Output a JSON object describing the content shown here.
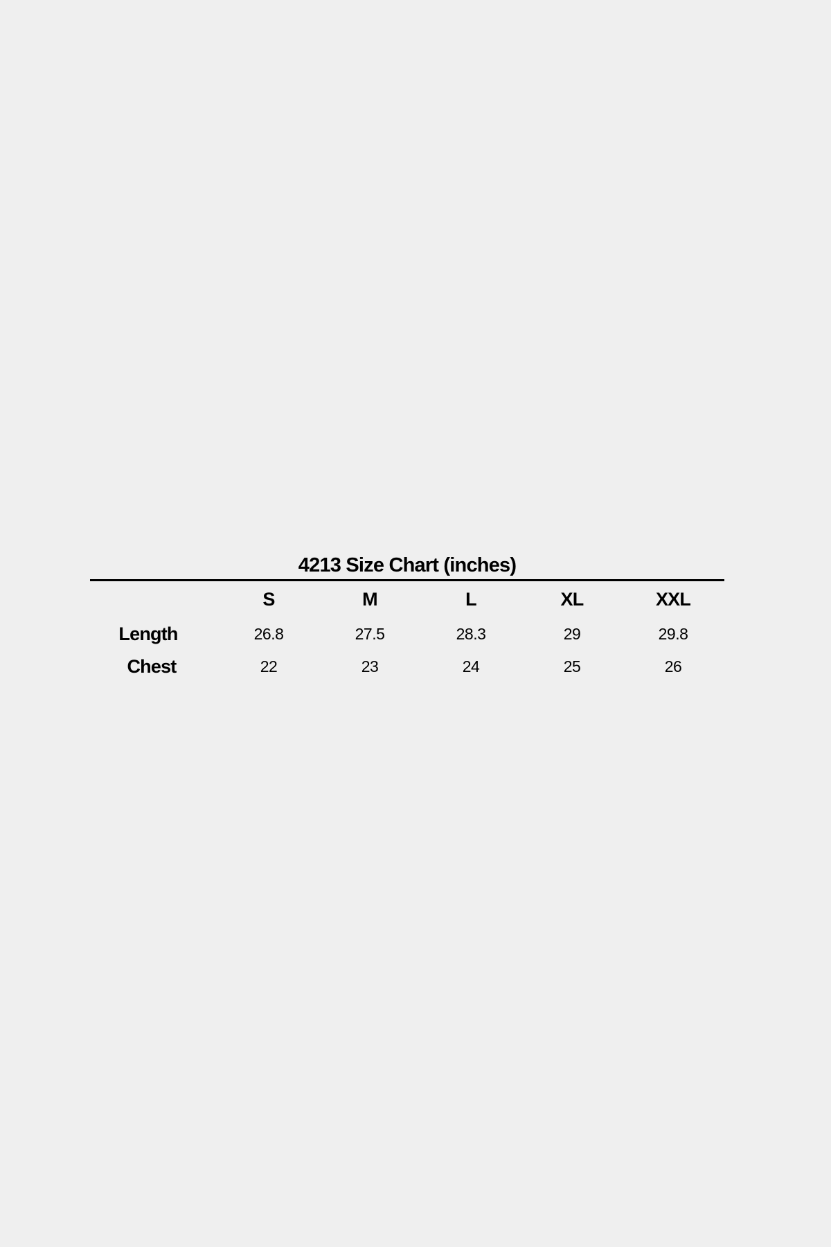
{
  "title": "4213 Size Chart (inches)",
  "sizes": [
    "S",
    "M",
    "L",
    "XL",
    "XXL"
  ],
  "rows": [
    {
      "label": "Length",
      "values": [
        "26.8",
        "27.5",
        "28.3",
        "29",
        "29.8"
      ]
    },
    {
      "label": "Chest",
      "values": [
        "22",
        "23",
        "24",
        "25",
        "26"
      ]
    }
  ]
}
